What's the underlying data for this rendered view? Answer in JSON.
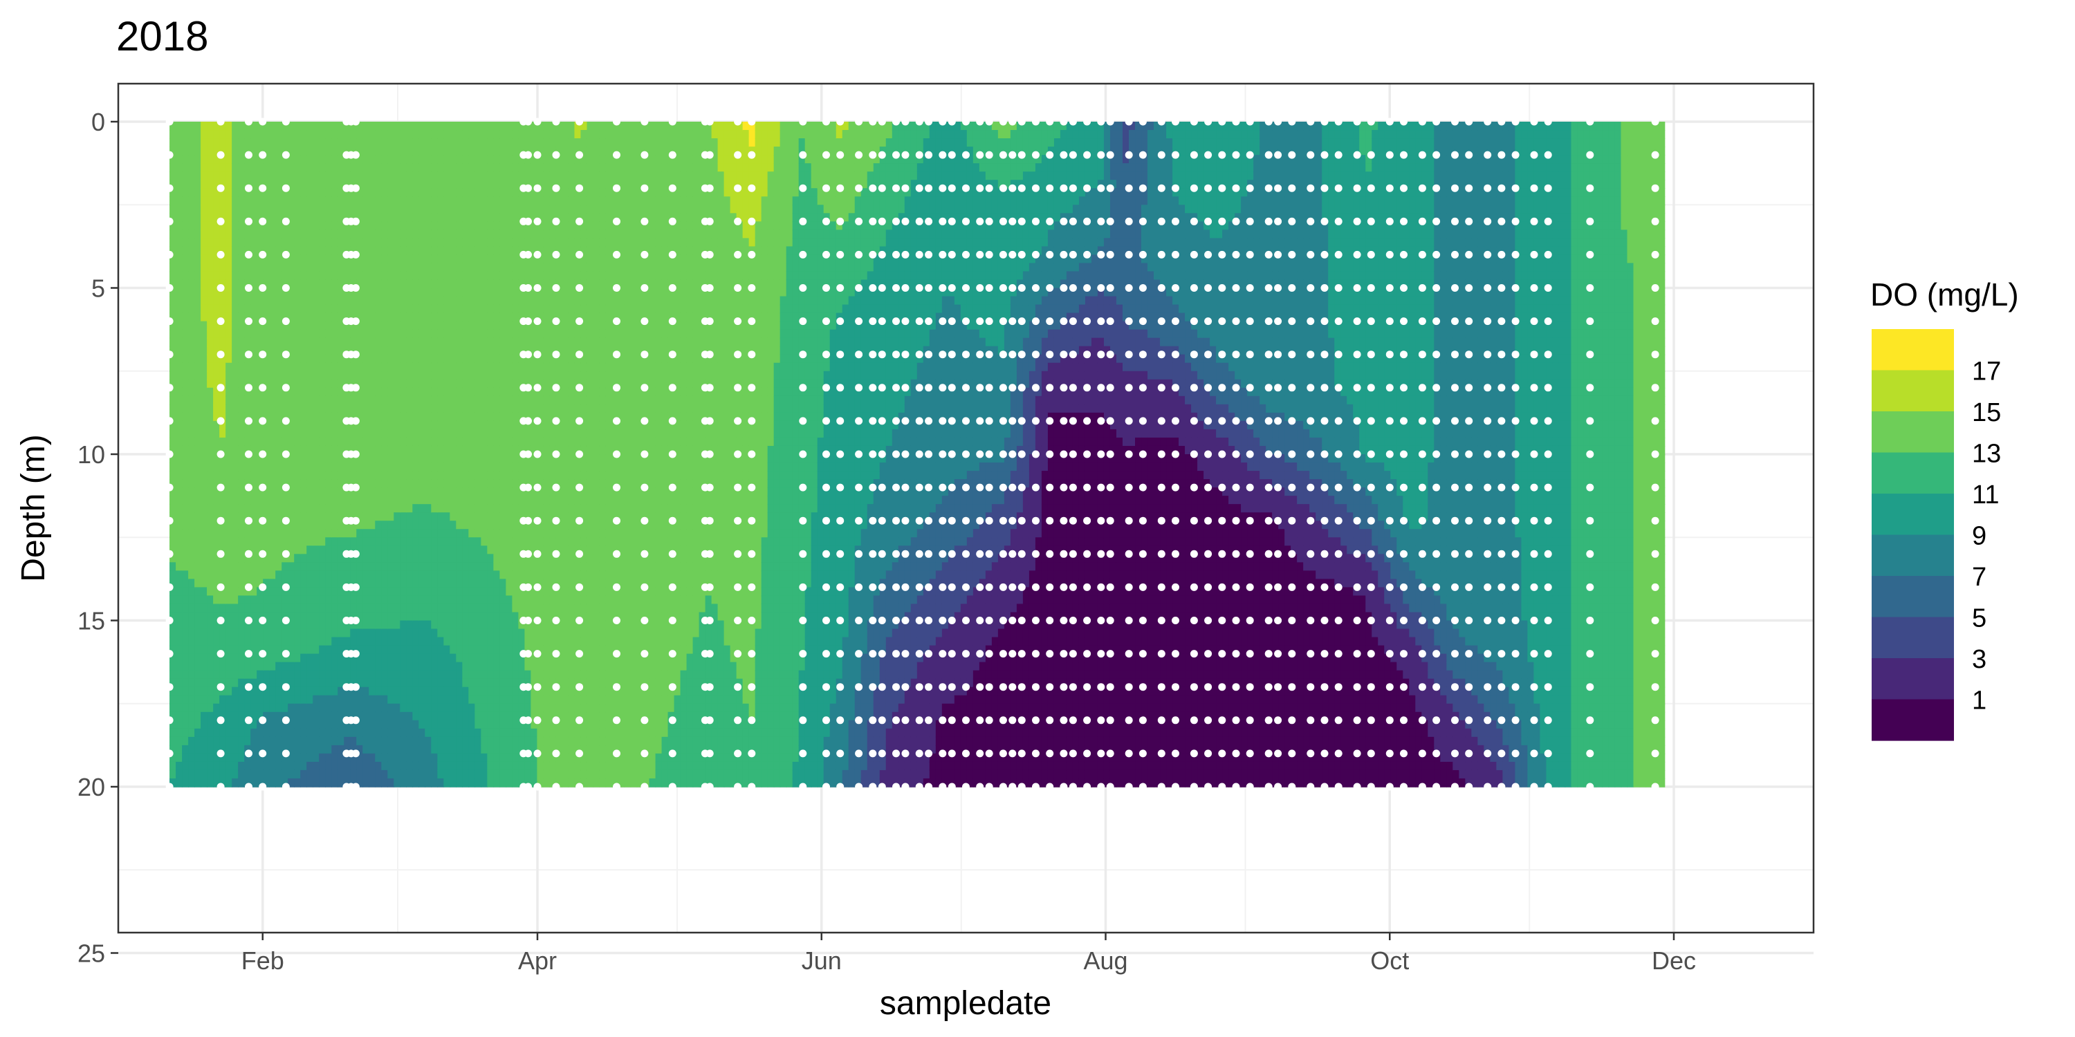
{
  "chart_data": {
    "type": "heatmap",
    "title": "2018",
    "xlabel": "sampledate",
    "ylabel": "Depth (m)",
    "x_ticks": [
      "Feb",
      "Apr",
      "Jun",
      "Aug",
      "Oct",
      "Dec"
    ],
    "x_tick_dates": [
      "2018-02-01",
      "2018-04-01",
      "2018-06-01",
      "2018-08-01",
      "2018-10-01",
      "2018-12-01"
    ],
    "y_ticks": [
      0,
      5,
      10,
      15,
      20,
      25
    ],
    "xlim": [
      "2018-01-01",
      "2018-12-31"
    ],
    "ylim": [
      0,
      26
    ],
    "y_reversed": true,
    "grid": true,
    "legend": {
      "title": "DO (mg/L)",
      "position": "right",
      "labels": [
        "17",
        "15",
        "13",
        "11",
        "9",
        "7",
        "5",
        "3",
        "1"
      ],
      "bins": [
        {
          "range": [
            17,
            19
          ],
          "color": "#fde725"
        },
        {
          "range": [
            15,
            17
          ],
          "color": "#b8de29"
        },
        {
          "range": [
            13,
            15
          ],
          "color": "#6ece58"
        },
        {
          "range": [
            11,
            13
          ],
          "color": "#35b779"
        },
        {
          "range": [
            9,
            11
          ],
          "color": "#1f9e89"
        },
        {
          "range": [
            7,
            9
          ],
          "color": "#26828e"
        },
        {
          "range": [
            5,
            7
          ],
          "color": "#31688e"
        },
        {
          "range": [
            3,
            5
          ],
          "color": "#3e4a89"
        },
        {
          "range": [
            1,
            3
          ],
          "color": "#482878"
        },
        {
          "range": [
            -1,
            1
          ],
          "color": "#440154"
        }
      ]
    },
    "depths": [
      0,
      2,
      4,
      6,
      8,
      10,
      12,
      14,
      16,
      18,
      20
    ],
    "profiles": [
      {
        "date": "2018-01-12",
        "do": [
          14.2,
          14.2,
          14.2,
          14.2,
          14.2,
          14.0,
          13.8,
          12.4,
          11.8,
          11.6,
          11.0
        ]
      },
      {
        "date": "2018-01-23",
        "do": [
          15.4,
          15.4,
          15.4,
          15.4,
          15.2,
          15.0,
          14.6,
          13.4,
          12.0,
          10.6,
          9.6
        ]
      },
      {
        "date": "2018-02-01",
        "do": [
          13.8,
          13.8,
          13.8,
          13.8,
          13.8,
          13.6,
          13.4,
          13.0,
          11.8,
          8.8,
          7.6
        ]
      },
      {
        "date": "2018-02-20",
        "do": [
          13.8,
          13.8,
          13.8,
          13.8,
          13.8,
          13.6,
          13.2,
          12.2,
          10.4,
          7.6,
          5.4
        ]
      },
      {
        "date": "2018-03-08",
        "do": [
          13.8,
          13.8,
          13.8,
          13.8,
          13.8,
          13.6,
          12.8,
          11.8,
          10.2,
          9.2,
          8.2
        ]
      },
      {
        "date": "2018-03-31",
        "do": [
          14.2,
          14.2,
          14.0,
          13.8,
          13.8,
          13.8,
          13.6,
          13.4,
          13.2,
          13.0,
          12.8
        ]
      },
      {
        "date": "2018-04-10",
        "do": [
          15.2,
          14.6,
          14.4,
          14.2,
          14.2,
          14.2,
          14.2,
          14.2,
          14.2,
          14.2,
          14.2
        ]
      },
      {
        "date": "2018-04-25",
        "do": [
          13.6,
          13.6,
          13.6,
          13.6,
          13.6,
          13.6,
          13.6,
          13.6,
          13.4,
          13.2,
          13.0
        ]
      },
      {
        "date": "2018-05-08",
        "do": [
          14.8,
          14.4,
          14.0,
          13.8,
          13.6,
          13.4,
          13.2,
          13.0,
          12.8,
          12.6,
          12.4
        ]
      },
      {
        "date": "2018-05-17",
        "do": [
          17.6,
          16.0,
          14.8,
          14.2,
          14.0,
          13.8,
          13.6,
          13.4,
          13.2,
          13.0,
          12.8
        ]
      },
      {
        "date": "2018-05-28",
        "do": [
          13.0,
          12.6,
          12.2,
          12.0,
          11.8,
          11.6,
          11.4,
          11.2,
          11.0,
          10.8,
          10.6
        ]
      },
      {
        "date": "2018-06-05",
        "do": [
          15.4,
          14.0,
          12.4,
          10.8,
          10.4,
          10.2,
          10.0,
          9.8,
          9.4,
          8.2,
          7.4
        ]
      },
      {
        "date": "2018-06-15",
        "do": [
          13.4,
          12.0,
          10.6,
          9.8,
          9.4,
          9.0,
          8.2,
          6.6,
          4.6,
          3.2,
          2.4
        ]
      },
      {
        "date": "2018-06-28",
        "do": [
          10.0,
          9.6,
          9.2,
          8.8,
          8.4,
          7.8,
          6.4,
          4.2,
          2.2,
          0.6,
          0.2
        ]
      },
      {
        "date": "2018-07-10",
        "do": [
          14.0,
          11.0,
          10.2,
          9.4,
          8.6,
          7.2,
          4.0,
          1.8,
          0.4,
          0.2,
          0.2
        ]
      },
      {
        "date": "2018-07-20",
        "do": [
          11.6,
          10.0,
          8.6,
          5.6,
          1.4,
          0.4,
          0.2,
          0.2,
          0.2,
          0.2,
          0.2
        ]
      },
      {
        "date": "2018-07-31",
        "do": [
          10.2,
          8.8,
          6.8,
          3.4,
          1.4,
          0.4,
          0.2,
          0.2,
          0.2,
          0.2,
          0.2
        ]
      },
      {
        "date": "2018-08-05",
        "do": [
          4.0,
          5.4,
          6.2,
          5.0,
          2.2,
          0.8,
          0.2,
          0.2,
          0.2,
          0.2,
          0.2
        ]
      },
      {
        "date": "2018-08-15",
        "do": [
          9.2,
          9.0,
          8.4,
          6.4,
          2.6,
          0.4,
          0.2,
          0.2,
          0.2,
          0.2,
          0.2
        ]
      },
      {
        "date": "2018-08-25",
        "do": [
          10.4,
          9.6,
          8.8,
          8.2,
          6.0,
          1.6,
          0.4,
          0.2,
          0.2,
          0.2,
          0.2
        ]
      },
      {
        "date": "2018-09-05",
        "do": [
          8.8,
          8.6,
          8.4,
          8.2,
          8.0,
          4.8,
          0.6,
          0.2,
          0.2,
          0.2,
          0.2
        ]
      },
      {
        "date": "2018-09-15",
        "do": [
          8.6,
          8.6,
          8.6,
          8.6,
          8.6,
          6.4,
          2.6,
          0.6,
          0.2,
          0.2,
          0.2
        ]
      },
      {
        "date": "2018-09-26",
        "do": [
          11.4,
          11.0,
          10.4,
          10.0,
          9.6,
          9.2,
          5.6,
          1.2,
          0.2,
          0.2,
          0.2
        ]
      },
      {
        "date": "2018-10-05",
        "do": [
          9.6,
          9.6,
          9.6,
          9.6,
          9.6,
          9.6,
          9.4,
          6.2,
          1.6,
          0.2,
          0.2
        ]
      },
      {
        "date": "2018-10-15",
        "do": [
          8.4,
          8.4,
          8.4,
          8.4,
          8.4,
          8.4,
          8.4,
          8.2,
          6.4,
          2.4,
          0.4
        ]
      },
      {
        "date": "2018-10-25",
        "do": [
          8.4,
          8.4,
          8.4,
          8.4,
          8.4,
          8.4,
          8.4,
          8.2,
          7.6,
          5.6,
          2.2
        ]
      },
      {
        "date": "2018-11-02",
        "do": [
          9.8,
          9.8,
          9.8,
          9.8,
          9.8,
          9.8,
          9.8,
          9.8,
          9.6,
          9.0,
          8.4
        ]
      },
      {
        "date": "2018-11-10",
        "do": [
          11.2,
          11.2,
          11.2,
          11.2,
          11.2,
          11.2,
          11.2,
          11.2,
          11.2,
          11.2,
          11.2
        ]
      },
      {
        "date": "2018-11-20",
        "do": [
          13.2,
          13.2,
          12.8,
          12.6,
          12.6,
          12.6,
          12.6,
          12.6,
          12.6,
          12.6,
          12.6
        ]
      },
      {
        "date": "2018-11-29",
        "do": [
          14.0,
          14.0,
          14.0,
          14.0,
          14.0,
          14.0,
          14.0,
          14.0,
          14.0,
          14.0,
          14.0
        ]
      }
    ],
    "sample_dates": [
      "2018-01-12",
      "2018-01-23",
      "2018-01-29",
      "2018-02-01",
      "2018-02-06",
      "2018-02-19",
      "2018-02-20",
      "2018-02-21",
      "2018-03-29",
      "2018-03-30",
      "2018-04-01",
      "2018-04-05",
      "2018-04-10",
      "2018-04-18",
      "2018-04-24",
      "2018-04-30",
      "2018-05-07",
      "2018-05-08",
      "2018-05-14",
      "2018-05-17",
      "2018-05-28",
      "2018-06-02",
      "2018-06-05",
      "2018-06-09",
      "2018-06-12",
      "2018-06-14",
      "2018-06-17",
      "2018-06-19",
      "2018-06-22",
      "2018-06-24",
      "2018-06-27",
      "2018-06-29",
      "2018-07-02",
      "2018-07-05",
      "2018-07-07",
      "2018-07-10",
      "2018-07-12",
      "2018-07-14",
      "2018-07-17",
      "2018-07-20",
      "2018-07-23",
      "2018-07-25",
      "2018-07-28",
      "2018-07-31",
      "2018-08-02",
      "2018-08-06",
      "2018-08-09",
      "2018-08-13",
      "2018-08-16",
      "2018-08-20",
      "2018-08-23",
      "2018-08-26",
      "2018-08-29",
      "2018-09-01",
      "2018-09-05",
      "2018-09-07",
      "2018-09-10",
      "2018-09-14",
      "2018-09-17",
      "2018-09-20",
      "2018-09-24",
      "2018-09-27",
      "2018-10-01",
      "2018-10-04",
      "2018-10-08",
      "2018-10-11",
      "2018-10-15",
      "2018-10-18",
      "2018-10-22",
      "2018-10-25",
      "2018-10-28",
      "2018-11-01",
      "2018-11-04",
      "2018-11-13",
      "2018-11-27"
    ],
    "sample_depths": [
      0,
      1,
      2,
      3,
      4,
      5,
      6,
      7,
      8,
      9,
      10,
      11,
      12,
      13,
      14,
      15,
      16,
      17,
      18,
      19,
      20
    ]
  }
}
